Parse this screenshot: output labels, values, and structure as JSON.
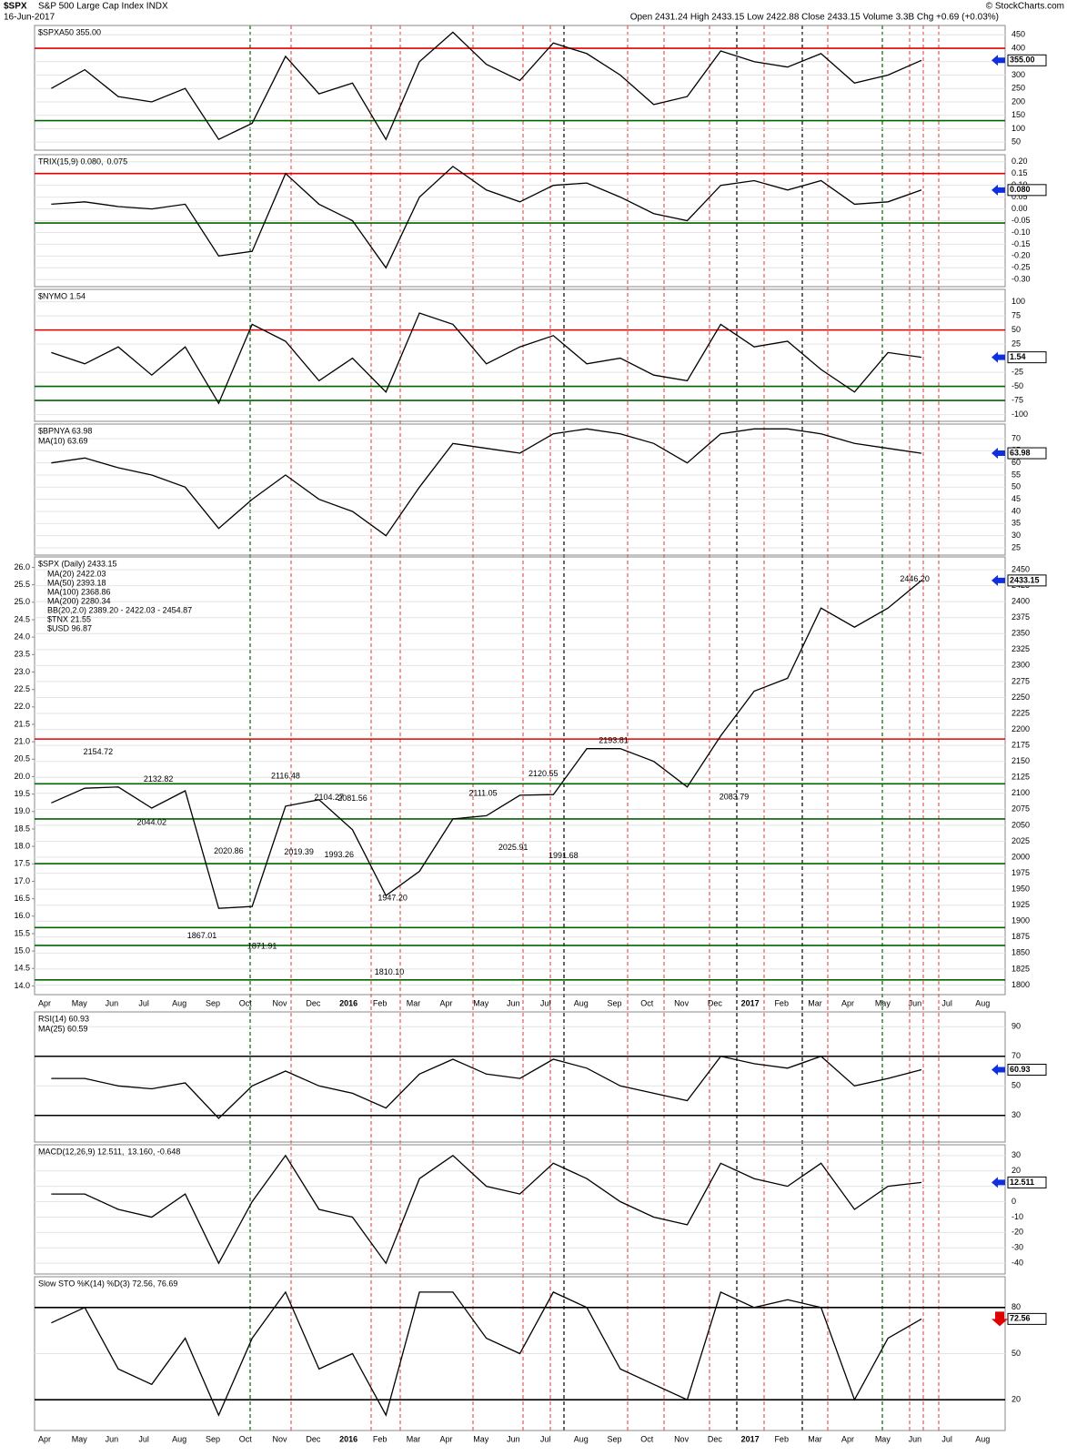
{
  "header": {
    "symbol": "$SPX",
    "name": "S&P 500 Large Cap Index INDX",
    "date": "16-Jun-2017",
    "quote": "Open 2431.24 High 2433.15 Low 2422.88 Close 2433.15 Volume 3.3B Chg +0.69 (+0.03%)",
    "credit": "© StockCharts.com"
  },
  "chart_data": [
    {
      "type": "line",
      "title": "$SPXA50 355.00",
      "color": "#000000",
      "last": {
        "value": 355,
        "label": "355.00"
      },
      "ylim": [
        20,
        485
      ],
      "yticks": [
        50,
        100,
        150,
        200,
        250,
        300,
        350,
        400,
        450
      ],
      "hlines": [
        {
          "value": 400,
          "color": "#e00000"
        },
        {
          "value": 130,
          "color": "#006400"
        }
      ],
      "values": [
        250,
        320,
        220,
        200,
        250,
        60,
        120,
        370,
        230,
        270,
        60,
        350,
        460,
        340,
        280,
        420,
        380,
        300,
        190,
        220,
        390,
        350,
        330,
        380,
        270,
        300,
        355,
        null,
        null
      ]
    },
    {
      "type": "line",
      "title": "TRIX(15,9) 0.080,",
      "title2": "0.075",
      "title2_color": "#f08020",
      "color": "#000000",
      "last": {
        "value": 0.08,
        "label": "0.080"
      },
      "ylim": [
        -0.33,
        0.23
      ],
      "yticks": [
        {
          "value": -0.3,
          "label": "-0.30"
        },
        -0.25,
        {
          "value": -0.2,
          "label": "-0.20"
        },
        -0.15,
        {
          "value": -0.1,
          "label": "-0.10"
        },
        -0.05,
        {
          "value": 0,
          "label": "0.00"
        },
        0.05,
        {
          "value": 0.1,
          "label": "0.10"
        },
        0.15,
        {
          "value": 0.2,
          "label": "0.20"
        }
      ],
      "hlines": [
        {
          "value": 0.15,
          "color": "#e00000"
        },
        {
          "value": -0.06,
          "color": "#006400"
        }
      ],
      "values": [
        0.02,
        0.03,
        0.01,
        0,
        0.02,
        -0.2,
        -0.18,
        0.15,
        0.02,
        -0.05,
        -0.25,
        0.05,
        0.18,
        0.08,
        0.03,
        0.1,
        0.11,
        0.05,
        -0.02,
        -0.05,
        0.1,
        0.12,
        0.08,
        0.12,
        0.02,
        0.03,
        0.08,
        null,
        null
      ]
    },
    {
      "type": "line",
      "title": "$NYMO 1.54",
      "color": "#000000",
      "last": {
        "value": 1.54,
        "label": "1.54"
      },
      "ylim": [
        -112,
        122
      ],
      "yticks": [
        -100,
        -75,
        -50,
        -25,
        25,
        50,
        75,
        100
      ],
      "hlines": [
        {
          "value": 50,
          "color": "#e00000"
        },
        {
          "value": -50,
          "color": "#006400"
        },
        {
          "value": -75,
          "color": "#006400"
        }
      ],
      "values": [
        10,
        -10,
        20,
        -30,
        20,
        -80,
        60,
        30,
        -40,
        0,
        -60,
        80,
        60,
        -10,
        20,
        40,
        -10,
        0,
        -30,
        -40,
        60,
        20,
        30,
        -20,
        -60,
        10,
        1.54,
        null,
        null
      ]
    },
    {
      "type": "line",
      "title": "$BPNYA 63.98",
      "title_line2": "MA(10) 63.69",
      "color": "#000000",
      "last": {
        "value": 63.98,
        "label": "63.98"
      },
      "ylim": [
        22,
        76
      ],
      "yticks": [
        25,
        30,
        35,
        40,
        45,
        50,
        55,
        60,
        65,
        70
      ],
      "hlines": [],
      "values": [
        60,
        62,
        58,
        55,
        50,
        33,
        45,
        55,
        45,
        40,
        30,
        50,
        68,
        66,
        64,
        72,
        74,
        72,
        68,
        60,
        72,
        74,
        74,
        72,
        68,
        66,
        63.98,
        null,
        null
      ]
    },
    {
      "type": "line",
      "title": "$SPX (Daily) 2433.15",
      "color": "#000000",
      "legend": [
        {
          "text": "MA(20) 2422.03",
          "color": "#000000"
        },
        {
          "text": "MA(50) 2393.18",
          "color": "#e00000"
        },
        {
          "text": "MA(100) 2368.86",
          "color": "#000000"
        },
        {
          "text": "MA(200) 2280.34",
          "color": "#e000e0"
        },
        {
          "text": "BB(20,2.0) 2389.20 - 2422.03 - 2454.87",
          "color": "#d08040"
        },
        {
          "text": "$TNX 21.55",
          "color": "#e000e0"
        },
        {
          "text": "$USD 96.87",
          "color": "#a06030"
        }
      ],
      "last": {
        "value": 2433.15,
        "label": "2433.15"
      },
      "ylim": [
        1785,
        2470
      ],
      "yticks": [
        1800,
        1825,
        1850,
        1875,
        1900,
        1925,
        1950,
        1975,
        2000,
        2025,
        2050,
        2075,
        2100,
        2125,
        2150,
        2175,
        2200,
        2225,
        2250,
        2275,
        2300,
        2325,
        2350,
        2375,
        2400,
        2425,
        2450
      ],
      "y2lim": [
        13.75,
        26.3
      ],
      "y2ticks": [
        {
          "value": 14,
          "label": "14.0"
        },
        14.5,
        {
          "value": 15,
          "label": "15.0"
        },
        15.5,
        {
          "value": 16,
          "label": "16.0"
        },
        16.5,
        {
          "value": 17,
          "label": "17.0"
        },
        17.5,
        {
          "value": 18,
          "label": "18.0"
        },
        18.5,
        {
          "value": 19,
          "label": "19.0"
        },
        19.5,
        {
          "value": 20,
          "label": "20.0"
        },
        20.5,
        {
          "value": 21,
          "label": "21.0"
        },
        21.5,
        {
          "value": 22,
          "label": "22.0"
        },
        22.5,
        {
          "value": 23,
          "label": "23.0"
        },
        23.5,
        {
          "value": 24,
          "label": "24.0"
        },
        24.5,
        {
          "value": 25,
          "label": "25.0"
        },
        25.5,
        {
          "value": 26,
          "label": "26.0"
        }
      ],
      "hlines": [
        {
          "value": 2185,
          "color": "#e00000"
        },
        {
          "value": 2115,
          "color": "#006400"
        },
        {
          "value": 2060,
          "color": "#006400"
        },
        {
          "value": 1990,
          "color": "#006400"
        },
        {
          "value": 1890,
          "color": "#006400"
        },
        {
          "value": 1862,
          "color": "#006400"
        },
        {
          "value": 1808,
          "color": "#006400"
        }
      ],
      "annotations": [
        {
          "x": 1.9,
          "value": 2154.72,
          "label": "2154.72"
        },
        {
          "x": 3.7,
          "value": 2132.82,
          "label": "2132.82"
        },
        {
          "x": 3.5,
          "value": 2044.02,
          "label": "2044.02"
        },
        {
          "x": 5.8,
          "value": 2020.86,
          "label": "2020.86"
        },
        {
          "x": 5.0,
          "value": 1867.01,
          "label": "1867.01"
        },
        {
          "x": 6.8,
          "value": 1871.91,
          "label": "1871.91"
        },
        {
          "x": 7.5,
          "value": 2116.48,
          "label": "2116.48"
        },
        {
          "x": 8.8,
          "value": 2104.27,
          "label": "2104.27"
        },
        {
          "x": 9.5,
          "value": 2081.56,
          "label": "2081.56"
        },
        {
          "x": 7.9,
          "value": 2019.39,
          "label": "2019.39"
        },
        {
          "x": 9.1,
          "value": 1993.26,
          "label": "1993.26"
        },
        {
          "x": 10.7,
          "value": 1947.2,
          "label": "1947.20"
        },
        {
          "x": 10.6,
          "value": 1810.1,
          "label": "1810.10"
        },
        {
          "x": 13.4,
          "value": 2111.05,
          "label": "2111.05"
        },
        {
          "x": 15.2,
          "value": 2120.55,
          "label": "2120.55"
        },
        {
          "x": 14.3,
          "value": 2025.91,
          "label": "2025.91"
        },
        {
          "x": 15.8,
          "value": 1991.68,
          "label": "1991.68"
        },
        {
          "x": 17.3,
          "value": 2193.81,
          "label": "2193.81"
        },
        {
          "x": 20.9,
          "value": 2083.79,
          "label": "2083.79"
        },
        {
          "x": 26.3,
          "value": 2446.2,
          "label": "2446.20"
        }
      ],
      "categories": [
        "Apr",
        "May",
        "Jun",
        "Jul",
        "Aug",
        "Sep",
        "Oct",
        "Nov",
        "Dec",
        "2016",
        "Feb",
        "Mar",
        "Apr",
        "May",
        "Jun",
        "Jul",
        "Aug",
        "Sep",
        "Oct",
        "Nov",
        "Dec",
        "2017",
        "Feb",
        "Mar",
        "Apr",
        "May",
        "Jun",
        "Jul",
        "Aug"
      ],
      "values": [
        2085,
        2108,
        2110,
        2077,
        2104,
        1920,
        1923,
        2080,
        2090,
        2043,
        1940,
        1978,
        2060,
        2065,
        2097,
        2098,
        2170,
        2170,
        2150,
        2110,
        2190,
        2260,
        2280,
        2390,
        2360,
        2390,
        2433.15,
        null,
        null
      ]
    },
    {
      "type": "line",
      "title": "RSI(14) 60.93",
      "title_line2": "MA(25) 60.59",
      "color": "#000000",
      "last": {
        "value": 60.93,
        "label": "60.93"
      },
      "ylim": [
        12,
        100
      ],
      "yticks": [
        30,
        50,
        70,
        90
      ],
      "hlines": [
        {
          "value": 70,
          "color": "#000000"
        },
        {
          "value": 30,
          "color": "#000000"
        }
      ],
      "values": [
        55,
        55,
        50,
        48,
        52,
        28,
        50,
        60,
        50,
        45,
        35,
        58,
        68,
        58,
        55,
        68,
        62,
        50,
        45,
        40,
        70,
        65,
        62,
        70,
        50,
        55,
        60.93,
        null,
        null
      ]
    },
    {
      "type": "line",
      "title": "MACD(12,26,9) 12.511,",
      "title2": "13.160, -0.648",
      "title2_color": "#f08020",
      "color": "#000000",
      "last": {
        "value": 12.511,
        "label": "12.511"
      },
      "ylim": [
        -47,
        37
      ],
      "yticks": [
        -40,
        -30,
        -20,
        -10,
        0,
        10,
        20,
        30
      ],
      "hlines": [],
      "values": [
        5,
        5,
        -5,
        -10,
        5,
        -40,
        0,
        30,
        -5,
        -10,
        -40,
        15,
        30,
        10,
        5,
        25,
        15,
        0,
        -10,
        -15,
        25,
        15,
        10,
        25,
        -5,
        10,
        12.511,
        null,
        null
      ]
    },
    {
      "type": "line",
      "title": "Slow STO %K(14) %D(3) 72.56, 76.69",
      "color": "#000000",
      "last": {
        "value": 72.56,
        "label": "72.56"
      },
      "ylim": [
        0,
        100
      ],
      "yticks": [
        20,
        50,
        80
      ],
      "hlines": [
        {
          "value": 80,
          "color": "#000000"
        },
        {
          "value": 20,
          "color": "#000000"
        }
      ],
      "values": [
        70,
        80,
        40,
        30,
        60,
        10,
        60,
        90,
        40,
        50,
        10,
        90,
        90,
        60,
        50,
        90,
        80,
        40,
        30,
        20,
        90,
        80,
        85,
        80,
        20,
        60,
        72.56,
        null,
        null
      ]
    }
  ]
}
